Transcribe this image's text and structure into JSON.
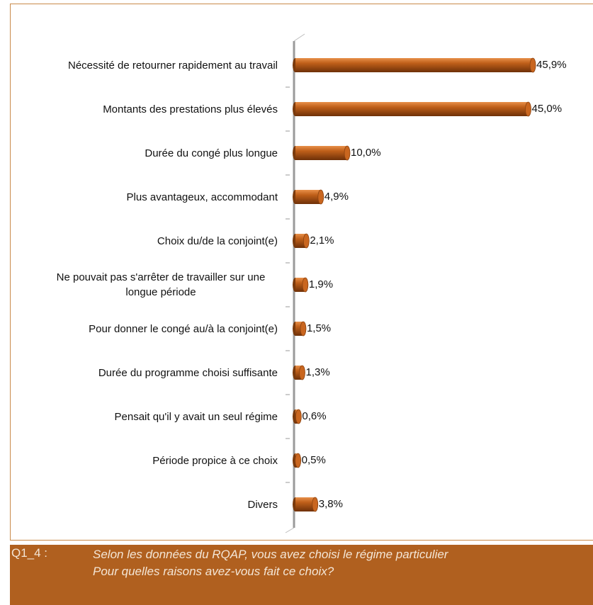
{
  "chart_data": {
    "type": "bar",
    "orientation": "horizontal",
    "categories": [
      "Nécessité de retourner rapidement au travail",
      "Montants des prestations plus élevés",
      "Durée du congé plus longue",
      "Plus avantageux, accommodant",
      "Choix du/de la conjoint(e)",
      "Ne pouvait pas s'arrêter de travailler sur une longue période",
      "Pour donner le congé au/à la conjoint(e)",
      "Durée du programme choisi suffisante",
      "Pensait qu'il y avait un seul régime",
      "Période propice à ce choix",
      "Divers"
    ],
    "values": [
      45.9,
      45.0,
      10.0,
      4.9,
      2.1,
      1.9,
      1.5,
      1.3,
      0.6,
      0.5,
      3.8
    ],
    "value_labels": [
      "45,9%",
      "45,0%",
      "10,0%",
      "4,9%",
      "2,1%",
      "1,9%",
      "1,5%",
      "1,3%",
      "0,6%",
      "0,5%",
      "3,8%"
    ],
    "color": "#c0601a"
  },
  "footer": {
    "code": "Q1_4 :",
    "question": "Selon les données du RQAP, vous avez choisi le régime particulier",
    "question_line2": "Pour quelles raisons avez-vous fait ce choix?"
  }
}
